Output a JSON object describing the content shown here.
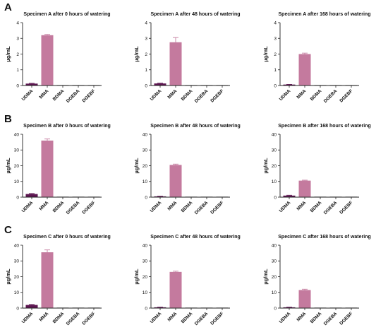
{
  "rows": [
    {
      "label": "A"
    },
    {
      "label": "B"
    },
    {
      "label": "C"
    }
  ],
  "colors": {
    "UDMA": "#5c1550",
    "MMA": "#c47a9e",
    "axis": "#222222"
  },
  "chart_data": [
    {
      "type": "bar",
      "title": "Specimen A after 0 hours of watering",
      "ylabel": "µg/mL",
      "categories": [
        "UDMA",
        "MMA",
        "BDMA",
        "DGEBA",
        "DGEBF"
      ],
      "values": [
        0.12,
        3.2,
        0,
        0,
        0
      ],
      "errors": [
        0.02,
        0.05,
        0,
        0,
        0
      ],
      "ylim": [
        0,
        4
      ],
      "yticks": [
        "0",
        "1",
        "2",
        "3",
        "4"
      ]
    },
    {
      "type": "bar",
      "title": "Specimen A after 48 hours of watering",
      "ylabel": "µg/mL",
      "categories": [
        "UDMA",
        "MMA",
        "BDMA",
        "DGEBA",
        "DGEBF"
      ],
      "values": [
        0.13,
        2.75,
        0,
        0,
        0
      ],
      "errors": [
        0.02,
        0.3,
        0,
        0,
        0
      ],
      "ylim": [
        0,
        4
      ],
      "yticks": [
        "0",
        "1",
        "2",
        "3",
        "4"
      ]
    },
    {
      "type": "bar",
      "title": "Specimen A after 168 hours of watering",
      "ylabel": "µg/mL",
      "categories": [
        "UDMA",
        "MMA",
        "BDMA",
        "DGEBA",
        "DGEBF"
      ],
      "values": [
        0.06,
        2.0,
        0,
        0,
        0
      ],
      "errors": [
        0.01,
        0.06,
        0,
        0,
        0
      ],
      "ylim": [
        0,
        4
      ],
      "yticks": [
        "0",
        "1",
        "2",
        "3",
        "4"
      ]
    },
    {
      "type": "bar",
      "title": "Specimen B after 0 hours of watering",
      "ylabel": "µg/mL",
      "categories": [
        "UDMA",
        "MMA",
        "BDMA",
        "DGEBA",
        "DGEBF"
      ],
      "values": [
        2.0,
        36.0,
        0,
        0,
        0
      ],
      "errors": [
        0.3,
        1.0,
        0,
        0,
        0
      ],
      "ylim": [
        0,
        40
      ],
      "yticks": [
        "0",
        "10",
        "20",
        "30",
        "40"
      ]
    },
    {
      "type": "bar",
      "title": "Specimen B after 48 hours of watering",
      "ylabel": "µg/mL",
      "categories": [
        "UDMA",
        "MMA",
        "BDMA",
        "DGEBA",
        "DGEBF"
      ],
      "values": [
        0.5,
        20.5,
        0,
        0,
        0
      ],
      "errors": [
        0.1,
        0.5,
        0,
        0,
        0
      ],
      "ylim": [
        0,
        40
      ],
      "yticks": [
        "0",
        "10",
        "20",
        "30",
        "40"
      ]
    },
    {
      "type": "bar",
      "title": "Specimen B after 168 hours of watering",
      "ylabel": "µg/mL",
      "categories": [
        "UDMA",
        "MMA",
        "BDMA",
        "DGEBA",
        "DGEBF"
      ],
      "values": [
        1.0,
        10.5,
        0,
        0,
        0
      ],
      "errors": [
        0.2,
        0.3,
        0,
        0,
        0
      ],
      "ylim": [
        0,
        40
      ],
      "yticks": [
        "0",
        "10",
        "20",
        "30",
        "40"
      ]
    },
    {
      "type": "bar",
      "title": "Specimen C after 0 hours of watering",
      "ylabel": "µg/mL",
      "categories": [
        "UDMA",
        "MMA",
        "BDMA",
        "DGEBA",
        "DGEBF"
      ],
      "values": [
        2.0,
        35.5,
        0,
        0,
        0
      ],
      "errors": [
        0.3,
        1.5,
        0,
        0,
        0
      ],
      "ylim": [
        0,
        40
      ],
      "yticks": [
        "0",
        "10",
        "20",
        "30",
        "40"
      ]
    },
    {
      "type": "bar",
      "title": "Specimen C after 48 hours of watering",
      "ylabel": "µg/mL",
      "categories": [
        "UDMA",
        "MMA",
        "BDMA",
        "DGEBA",
        "DGEBF"
      ],
      "values": [
        0.5,
        23.0,
        0,
        0,
        0
      ],
      "errors": [
        0.1,
        0.5,
        0,
        0,
        0
      ],
      "ylim": [
        0,
        40
      ],
      "yticks": [
        "0",
        "10",
        "20",
        "30",
        "40"
      ]
    },
    {
      "type": "bar",
      "title": "Specimen C after 168 hours of watering",
      "ylabel": "µg/mL",
      "categories": [
        "UDMA",
        "MMA",
        "BDMA",
        "DGEBA",
        "DGEBF"
      ],
      "values": [
        0.5,
        11.5,
        0,
        0,
        0
      ],
      "errors": [
        0.1,
        0.5,
        0,
        0,
        0
      ],
      "ylim": [
        0,
        40
      ],
      "yticks": [
        "0",
        "10",
        "20",
        "30",
        "40"
      ]
    }
  ]
}
